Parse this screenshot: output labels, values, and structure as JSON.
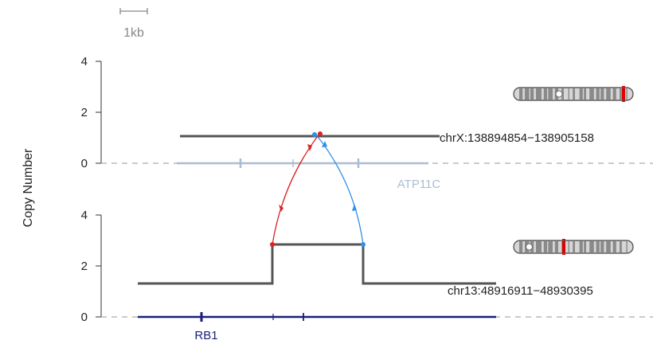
{
  "chart_data": {
    "type": "line",
    "ylabel": "Copy Number",
    "scale_bar_label": "1kb",
    "colors": {
      "segment": "#555555",
      "red": "#dd2222",
      "blue": "#2e8ee8",
      "gene_top": "#a9bdd4",
      "gene_bottom": "#1a1f78",
      "axis": "#333333",
      "dashed": "#aaaaaa",
      "chromosome_band": "#aaaaaa",
      "chromosome_outline": "#666666"
    },
    "panels": [
      {
        "region_label": "chrX:138894854−138905158",
        "yticks": [
          0,
          2,
          4
        ],
        "ylim": [
          0,
          4
        ],
        "segments": [
          {
            "x0": 0.13,
            "x1": 0.87,
            "y": 1.07
          }
        ],
        "gene": {
          "name": "ATP11C",
          "exon_marks": [
            0.2,
            0.38,
            0.6
          ]
        },
        "chromosome_marker": 0.92
      },
      {
        "region_label": "chr13:48916911−48930395",
        "yticks": [
          0,
          2,
          4
        ],
        "ylim": [
          0,
          4
        ],
        "segments": [
          {
            "x0": 0.0,
            "x1": 0.37,
            "y": 1.3
          },
          {
            "x0": 0.37,
            "x1": 0.63,
            "y": 2.87
          },
          {
            "x0": 0.63,
            "x1": 1.0,
            "y": 1.3
          }
        ],
        "gene": {
          "name": "RB1",
          "exon_marks": [
            0.18,
            0.46
          ]
        },
        "chromosome_marker": 0.42
      }
    ],
    "connections": [
      {
        "color": "red",
        "from_x_bottom": 0.37,
        "to_x_top": 0.47
      },
      {
        "color": "blue",
        "from_x_bottom": 0.63,
        "to_x_top": 0.45
      }
    ]
  }
}
